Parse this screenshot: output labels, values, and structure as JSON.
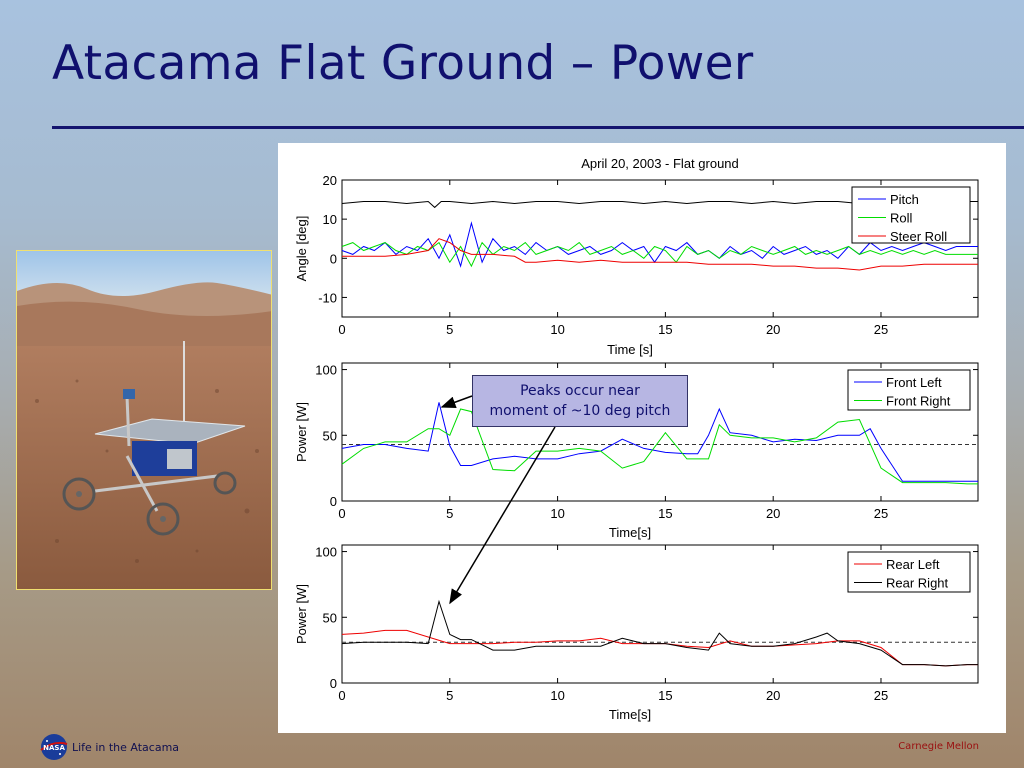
{
  "slide": {
    "title": "Atacama Flat Ground – Power",
    "callout_lines": [
      "Peaks occur near",
      "moment of ~10 deg pitch"
    ],
    "footer_left": "Life in the Atacama",
    "footer_right": "Carnegie Mellon",
    "logo_text": "NASA",
    "colors": {
      "title": "#10106e",
      "callout_bg": "#b7b6e3",
      "footer_right": "#9a1010"
    }
  },
  "chart_data": [
    {
      "type": "line",
      "title": "April 20, 2003 - Flat ground",
      "xlabel": "Time [s]",
      "ylabel": "Angle [deg]",
      "xlim": [
        0,
        29.5
      ],
      "ylim": [
        -15,
        20
      ],
      "xticks": [
        0,
        5,
        10,
        15,
        20,
        25
      ],
      "yticks": [
        -10,
        0,
        10,
        20
      ],
      "legend": "top-right",
      "series": [
        {
          "name": "Pitch",
          "color": "#0000ff",
          "x": [
            0,
            0.5,
            1,
            1.5,
            2,
            2.5,
            3,
            3.5,
            4,
            4.5,
            5,
            5.5,
            6,
            6.5,
            7,
            7.5,
            8,
            8.5,
            9,
            9.5,
            10,
            10.5,
            11,
            11.5,
            12,
            12.5,
            13,
            13.5,
            14,
            14.5,
            15,
            15.5,
            16,
            16.5,
            17,
            17.5,
            18,
            18.5,
            19,
            19.5,
            20,
            20.5,
            21,
            21.5,
            22,
            22.5,
            23,
            23.5,
            24,
            24.5,
            25,
            25.5,
            26,
            26.5,
            27,
            27.5,
            28,
            28.5,
            29,
            29.5
          ],
          "y": [
            2,
            1,
            3,
            2,
            4,
            1,
            3,
            2,
            5,
            0,
            6,
            -2,
            9,
            -1,
            5,
            2,
            3,
            1,
            4,
            2,
            3,
            1,
            2,
            3,
            1,
            2,
            4,
            2,
            3,
            -1,
            3,
            2,
            4,
            1,
            2,
            0,
            3,
            1,
            2,
            0,
            3,
            1,
            2,
            3,
            1,
            2,
            0,
            3,
            1,
            4,
            2,
            3,
            2,
            3,
            4,
            3,
            2,
            3,
            3,
            3
          ]
        },
        {
          "name": "Roll",
          "color": "#00dd00",
          "x": [
            0,
            0.5,
            1,
            1.5,
            2,
            2.5,
            3,
            3.5,
            4,
            4.5,
            5,
            5.5,
            6,
            6.5,
            7,
            7.5,
            8,
            8.5,
            9,
            9.5,
            10,
            10.5,
            11,
            11.5,
            12,
            12.5,
            13,
            13.5,
            14,
            14.5,
            15,
            15.5,
            16,
            16.5,
            17,
            17.5,
            18,
            18.5,
            19,
            19.5,
            20,
            20.5,
            21,
            21.5,
            22,
            22.5,
            23,
            23.5,
            24,
            24.5,
            25,
            25.5,
            26,
            26.5,
            27,
            27.5,
            28,
            28.5,
            29,
            29.5
          ],
          "y": [
            3,
            4,
            2,
            3,
            4,
            2,
            1,
            3,
            2,
            4,
            -1,
            3,
            -2,
            4,
            1,
            3,
            2,
            4,
            1,
            2,
            3,
            2,
            4,
            1,
            2,
            3,
            1,
            2,
            0,
            3,
            2,
            -1,
            3,
            1,
            2,
            0,
            2,
            1,
            3,
            2,
            1,
            2,
            3,
            1,
            2,
            1,
            2,
            3,
            1,
            2,
            1,
            2,
            1,
            2,
            1,
            2,
            1,
            1,
            1,
            1
          ]
        },
        {
          "name": "Steer Roll",
          "color": "#ee0000",
          "x": [
            0,
            1,
            2,
            3,
            4,
            4.5,
            5,
            5.5,
            6,
            7,
            8,
            8.5,
            9,
            10,
            11,
            12,
            13,
            14,
            15,
            16,
            17,
            18,
            19,
            20,
            21,
            22,
            23,
            24,
            25,
            26,
            27,
            28,
            29,
            29.5
          ],
          "y": [
            0.5,
            0.5,
            0.5,
            1,
            2,
            5,
            4,
            2,
            1,
            1,
            0.5,
            -1,
            -1,
            -0.5,
            -1,
            -0.5,
            -1,
            -1,
            -1,
            -1,
            -1.5,
            -1.5,
            -1.5,
            -2,
            -2,
            -2.5,
            -2.5,
            -3,
            -2,
            -2,
            -1.5,
            -1.5,
            -1.5,
            -1.5
          ]
        },
        {
          "name": "",
          "color": "#000000",
          "x": [
            0,
            1,
            2,
            3,
            4,
            4.3,
            4.6,
            5,
            6,
            7,
            8,
            9,
            10,
            11,
            12,
            13,
            14,
            15,
            16,
            17,
            18,
            19,
            20,
            21,
            22,
            23,
            24,
            25,
            26,
            27,
            28,
            29,
            29.5
          ],
          "y": [
            14,
            14.5,
            14.5,
            14,
            14.5,
            13,
            14.5,
            14.5,
            14,
            14.5,
            14,
            14.5,
            14.5,
            14,
            14.5,
            14.5,
            14,
            14.5,
            14,
            14.5,
            14.5,
            14,
            14.5,
            14,
            14.5,
            14.5,
            14,
            14.5,
            14.5,
            14,
            14.5,
            14.5,
            14.5
          ]
        }
      ]
    },
    {
      "type": "line",
      "title": "",
      "xlabel": "Time[s]",
      "ylabel": "Power [W]",
      "xlim": [
        0,
        29.5
      ],
      "ylim": [
        0,
        105
      ],
      "xticks": [
        0,
        5,
        10,
        15,
        20,
        25
      ],
      "yticks": [
        0,
        50,
        100
      ],
      "reference_line": 43,
      "legend": "top-right",
      "series": [
        {
          "name": "Front Left",
          "color": "#0000ff",
          "x": [
            0,
            1,
            2,
            3,
            4,
            4.5,
            5,
            5.5,
            6,
            7,
            8,
            9,
            10,
            11,
            12,
            13,
            14,
            15,
            16,
            16.5,
            17,
            17.5,
            18,
            19,
            20,
            21,
            22,
            23,
            24,
            24.5,
            25,
            26,
            27,
            28,
            29,
            29.5
          ],
          "y": [
            40,
            43,
            43,
            40,
            38,
            75,
            42,
            27,
            27,
            32,
            34,
            32,
            32,
            36,
            38,
            47,
            40,
            37,
            36,
            36,
            50,
            70,
            52,
            50,
            45,
            47,
            46,
            50,
            50,
            55,
            40,
            15,
            15,
            15,
            15,
            15
          ]
        },
        {
          "name": "Front Right",
          "color": "#00dd00",
          "x": [
            0,
            1,
            2,
            3,
            4,
            4.5,
            5,
            5.5,
            6,
            7,
            8,
            9,
            10,
            11,
            12,
            13,
            14,
            15,
            16,
            17,
            17.5,
            18,
            19,
            20,
            21,
            22,
            23,
            24,
            25,
            26,
            27,
            28,
            29,
            29.5
          ],
          "y": [
            28,
            40,
            45,
            45,
            55,
            55,
            50,
            70,
            68,
            24,
            23,
            38,
            38,
            40,
            38,
            25,
            30,
            52,
            32,
            32,
            58,
            50,
            48,
            48,
            45,
            48,
            60,
            62,
            25,
            14,
            14,
            14,
            13,
            13
          ]
        }
      ]
    },
    {
      "type": "line",
      "title": "",
      "xlabel": "Time[s]",
      "ylabel": "Power [W]",
      "xlim": [
        0,
        29.5
      ],
      "ylim": [
        0,
        105
      ],
      "xticks": [
        0,
        5,
        10,
        15,
        20,
        25
      ],
      "yticks": [
        0,
        50,
        100
      ],
      "reference_line": 31,
      "legend": "top-right",
      "series": [
        {
          "name": "Rear Left",
          "color": "#ee0000",
          "x": [
            0,
            1,
            2,
            3,
            4,
            5,
            6,
            7,
            8,
            9,
            10,
            11,
            12,
            13,
            14,
            15,
            16,
            17,
            18,
            19,
            20,
            21,
            22,
            23,
            24,
            25,
            26,
            27,
            28,
            29,
            29.5
          ],
          "y": [
            37,
            38,
            40,
            40,
            35,
            30,
            30,
            30,
            31,
            31,
            32,
            32,
            34,
            30,
            30,
            30,
            28,
            27,
            32,
            28,
            28,
            29,
            30,
            32,
            32,
            27,
            14,
            14,
            13,
            14,
            14
          ]
        },
        {
          "name": "Rear Right",
          "color": "#000000",
          "x": [
            0,
            1,
            2,
            3,
            4,
            4.5,
            5,
            5.5,
            6,
            7,
            8,
            9,
            10,
            11,
            12,
            13,
            14,
            15,
            16,
            17,
            17.5,
            18,
            19,
            20,
            21,
            22,
            22.5,
            23,
            24,
            25,
            26,
            27,
            28,
            29,
            29.5
          ],
          "y": [
            30,
            31,
            31,
            31,
            30,
            62,
            37,
            33,
            33,
            25,
            25,
            28,
            28,
            28,
            28,
            34,
            30,
            30,
            27,
            25,
            38,
            30,
            28,
            28,
            30,
            35,
            38,
            32,
            30,
            25,
            14,
            14,
            13,
            14,
            14
          ]
        }
      ]
    }
  ]
}
